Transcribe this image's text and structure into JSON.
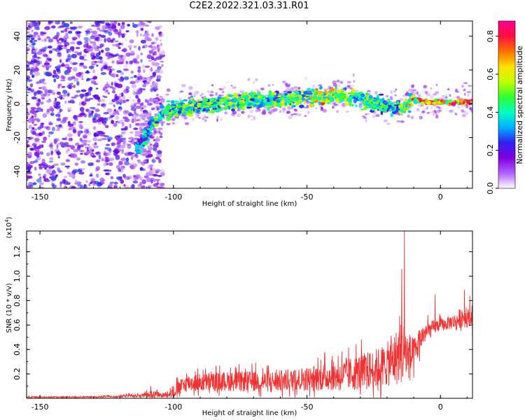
{
  "title": "C2E2.2022.321.03.31.R01",
  "colors": {
    "snr_line": "#f03232",
    "spectrogram_cmap": [
      "#ffffff",
      "#b060ff",
      "#8000e0",
      "#3020f0",
      "#00b0ff",
      "#00ffc0",
      "#30ff30",
      "#c0ff00",
      "#ffe000",
      "#ff7000",
      "#ff1040",
      "#ff0090"
    ]
  },
  "chart_data": [
    {
      "type": "heatmap",
      "name": "spectrogram",
      "xlabel": "Height of straight line (km)",
      "ylabel": "Frequency (Hz)",
      "xlim": [
        -155,
        12
      ],
      "ylim": [
        -50,
        49
      ],
      "xticks": [
        -150,
        -100,
        -50,
        0
      ],
      "yticks": [
        -40,
        -20,
        0,
        20,
        40
      ],
      "colorbar": {
        "label": "Normalized spectral amplitude",
        "range": [
          0,
          0.88
        ],
        "ticks": [
          "0.0",
          "0.2",
          "0.4",
          "0.6",
          "0.8"
        ],
        "tick_values": [
          0,
          0.2,
          0.4,
          0.6,
          0.8
        ]
      },
      "ridge": {
        "x": [
          -113,
          -110,
          -107,
          -104,
          -100,
          -95,
          -90,
          -85,
          -80,
          -75,
          -70,
          -65,
          -60,
          -55,
          -50,
          -45,
          -40,
          -35,
          -30,
          -25,
          -20,
          -15,
          -10,
          -5,
          0,
          5,
          10
        ],
        "freq": [
          -25,
          -18,
          -10,
          -6,
          -3,
          -2,
          -1,
          0,
          1,
          1,
          2,
          2,
          3,
          3,
          4,
          4,
          5,
          4,
          3,
          0,
          -1,
          -2,
          2,
          1,
          1,
          1,
          1
        ],
        "amp": [
          0.35,
          0.45,
          0.5,
          0.45,
          0.5,
          0.55,
          0.5,
          0.5,
          0.55,
          0.55,
          0.5,
          0.5,
          0.55,
          0.5,
          0.55,
          0.7,
          0.6,
          0.55,
          0.5,
          0.45,
          0.45,
          0.5,
          0.75,
          0.85,
          0.8,
          0.8,
          0.8
        ]
      }
    },
    {
      "type": "line",
      "name": "snr",
      "xlabel": "Height of straight line (km)",
      "ylabel": "SNR (10 * v/v)",
      "y_multiplier": "(x10",
      "y_multiplier_exp": "4",
      "y_multiplier_close": ")",
      "xlim": [
        -155,
        12
      ],
      "ylim": [
        0,
        1.37
      ],
      "xticks": [
        -150,
        -100,
        -50,
        0
      ],
      "yticks": [
        "0.2",
        "0.4",
        "0.6",
        "0.8",
        "1.0",
        "1.2"
      ],
      "ytick_values": [
        0.2,
        0.4,
        0.6,
        0.8,
        1.0,
        1.2
      ],
      "envelope": {
        "x": [
          -155,
          -130,
          -112,
          -108,
          -104,
          -99,
          -95,
          -90,
          -80,
          -70,
          -60,
          -50,
          -45,
          -40,
          -35,
          -30,
          -25,
          -20,
          -17,
          -15,
          -14,
          -13,
          -12,
          -10,
          -8,
          -6,
          -4,
          -2,
          0,
          2,
          4,
          6,
          8,
          10,
          12
        ],
        "base": [
          0.01,
          0.01,
          0.02,
          0.03,
          0.02,
          0.06,
          0.12,
          0.12,
          0.13,
          0.13,
          0.13,
          0.15,
          0.16,
          0.17,
          0.18,
          0.2,
          0.22,
          0.26,
          0.3,
          0.35,
          0.35,
          0.35,
          0.33,
          0.3,
          0.46,
          0.52,
          0.55,
          0.58,
          0.6,
          0.6,
          0.62,
          0.62,
          0.66,
          0.65,
          0.66
        ],
        "amp": [
          0.01,
          0.01,
          0.03,
          0.06,
          0.03,
          0.12,
          0.14,
          0.15,
          0.16,
          0.17,
          0.18,
          0.2,
          0.22,
          0.24,
          0.26,
          0.3,
          0.32,
          0.36,
          0.45,
          0.5,
          0.55,
          0.45,
          0.4,
          0.35,
          0.22,
          0.16,
          0.14,
          0.12,
          0.1,
          0.1,
          0.12,
          0.14,
          0.18,
          0.16,
          0.1
        ]
      },
      "peaks": [
        {
          "x": -108.5,
          "y": 0.1
        },
        {
          "x": -13.5,
          "y": 1.37
        },
        {
          "x": -14.5,
          "y": 1.06
        },
        {
          "x": -2,
          "y": 0.85
        },
        {
          "x": 9,
          "y": 0.89
        },
        {
          "x": 11,
          "y": 0.84
        },
        {
          "x": 12,
          "y": 0.45
        }
      ]
    }
  ]
}
